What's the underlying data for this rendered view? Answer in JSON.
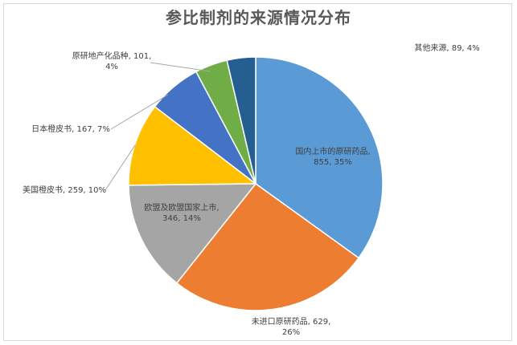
{
  "chart_data": {
    "type": "pie",
    "title": "参比制剂的来源情况分布",
    "slices": [
      {
        "name": "国内上市的原研药品",
        "value": 855,
        "percent": "35%",
        "color": "#5b9bd5",
        "label_line1": "国内上市的原研药品,",
        "label_line2": "855, 35%"
      },
      {
        "name": "未进口原研药品",
        "value": 629,
        "percent": "26%",
        "color": "#ed7d31",
        "label_line1": "未进口原研药品, 629,",
        "label_line2": "26%"
      },
      {
        "name": "欧盟及欧盟国家上市",
        "value": 346,
        "percent": "14%",
        "color": "#a5a5a5",
        "label_line1": "欧盟及欧盟国家上市,",
        "label_line2": "346, 14%"
      },
      {
        "name": "美国橙皮书",
        "value": 259,
        "percent": "10%",
        "color": "#ffc000",
        "label_line1": "美国橙皮书, 259, 10%",
        "label_line2": ""
      },
      {
        "name": "日本橙皮书",
        "value": 167,
        "percent": "7%",
        "color": "#4472c4",
        "label_line1": "日本橙皮书, 167, 7%",
        "label_line2": ""
      },
      {
        "name": "原研地产化品种",
        "value": 101,
        "percent": "4%",
        "color": "#70ad47",
        "label_line1": "原研地产化品种, 101,",
        "label_line2": "4%"
      },
      {
        "name": "其他来源",
        "value": 89,
        "percent": "4%",
        "color": "#255e91",
        "label_line1": "其他来源, 89, 4%",
        "label_line2": ""
      }
    ]
  }
}
